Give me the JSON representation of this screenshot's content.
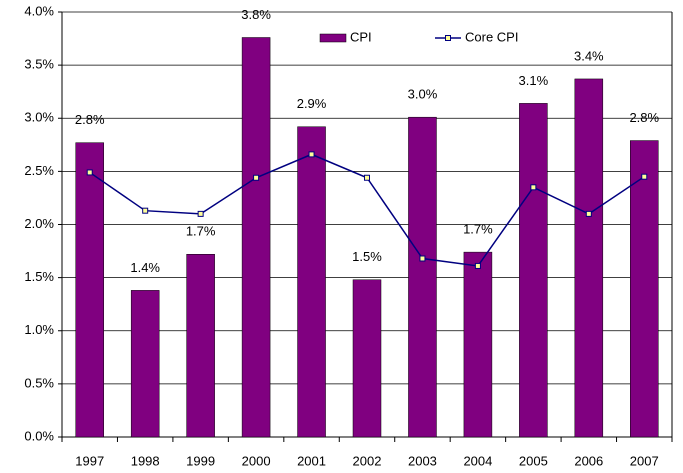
{
  "chart_data": {
    "type": "bar",
    "categories": [
      "1997",
      "1998",
      "1999",
      "2000",
      "2001",
      "2002",
      "2003",
      "2004",
      "2005",
      "2006",
      "2007"
    ],
    "series": [
      {
        "name": "CPI",
        "type": "bar",
        "color": "#800080",
        "values": [
          2.77,
          1.38,
          1.72,
          3.76,
          2.92,
          1.48,
          3.01,
          1.74,
          3.14,
          3.37,
          2.79
        ],
        "value_labels": [
          "2.8%",
          "1.4%",
          "1.7%",
          "3.8%",
          "2.9%",
          "1.5%",
          "3.0%",
          "1.7%",
          "3.1%",
          "3.4%",
          "2.8%"
        ]
      },
      {
        "name": "Core CPI",
        "type": "line",
        "color": "#000080",
        "marker_color": "#ffff99",
        "values": [
          2.49,
          2.13,
          2.1,
          2.44,
          2.66,
          2.44,
          1.68,
          1.61,
          2.35,
          2.1,
          2.45
        ]
      }
    ],
    "ylim": [
      0,
      4
    ],
    "yticks": [
      {
        "value": 0,
        "label": "0.0%"
      },
      {
        "value": 0.5,
        "label": "0.5%"
      },
      {
        "value": 1,
        "label": "1.0%"
      },
      {
        "value": 1.5,
        "label": "1.5%"
      },
      {
        "value": 2,
        "label": "2.0%"
      },
      {
        "value": 2.5,
        "label": "2.5%"
      },
      {
        "value": 3,
        "label": "3.0%"
      },
      {
        "value": 3.5,
        "label": "3.5%"
      },
      {
        "value": 4,
        "label": "4.0%"
      }
    ],
    "grid": true,
    "legend": "top"
  }
}
